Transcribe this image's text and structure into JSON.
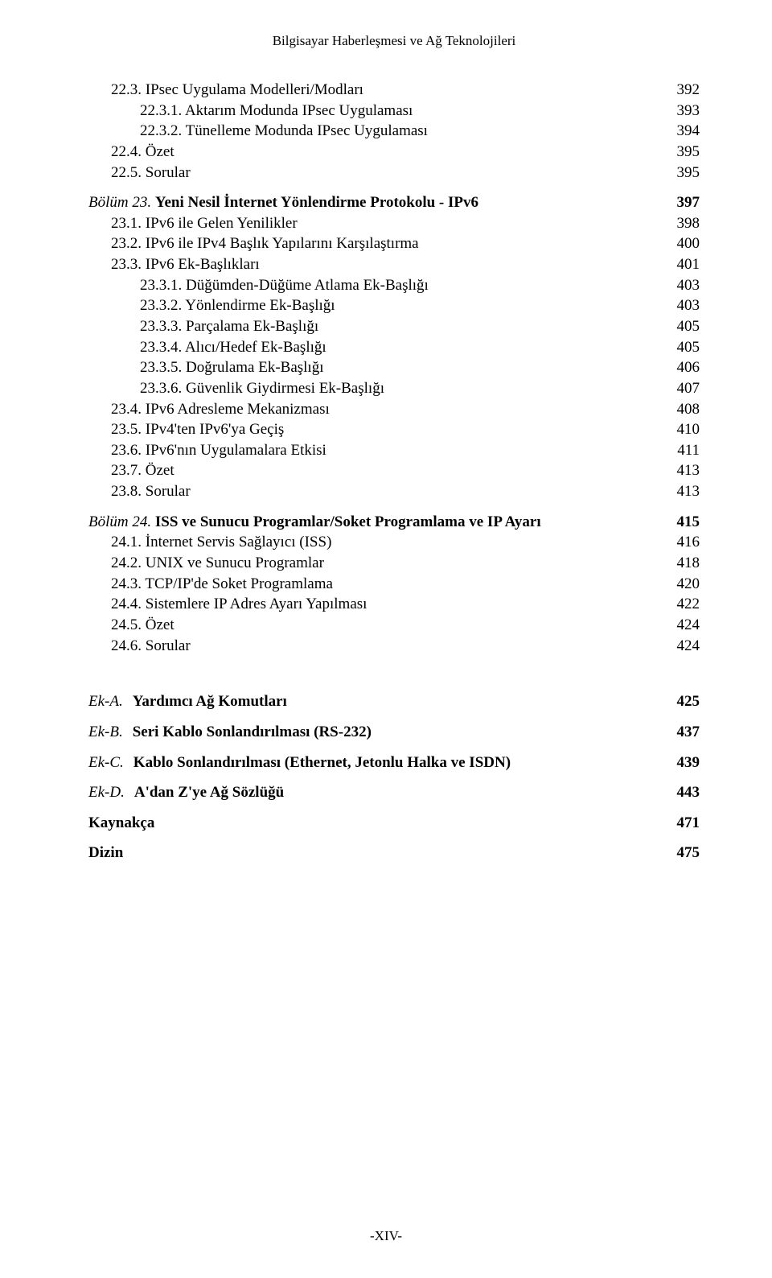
{
  "header": "Bilgisayar Haberleşmesi ve Ağ Teknolojileri",
  "toc": [
    {
      "label": "22.3. IPsec Uygulama Modelleri/Modları",
      "page": "392",
      "indent": 1,
      "style": ""
    },
    {
      "label": "22.3.1. Aktarım Modunda IPsec Uygulaması",
      "page": "393",
      "indent": 2,
      "style": ""
    },
    {
      "label": "22.3.2. Tünelleme Modunda IPsec Uygulaması",
      "page": "394",
      "indent": 2,
      "style": ""
    },
    {
      "label": "22.4. Özet",
      "page": "395",
      "indent": 1,
      "style": ""
    },
    {
      "label": "22.5. Sorular",
      "page": "395",
      "indent": 1,
      "style": ""
    },
    {
      "label": "<span class='section-title'>Bölüm 23.</span> <span class='bold'>Yeni Nesil İnternet Yönlendirme Protokolu - IPv6</span>",
      "page": "<span class='bold'>397</span>",
      "indent": 0,
      "style": "gap"
    },
    {
      "label": "23.1. IPv6 ile Gelen Yenilikler",
      "page": "398",
      "indent": 1,
      "style": ""
    },
    {
      "label": "23.2. IPv6 ile IPv4 Başlık Yapılarını Karşılaştırma",
      "page": "400",
      "indent": 1,
      "style": ""
    },
    {
      "label": "23.3. IPv6 Ek-Başlıkları",
      "page": "401",
      "indent": 1,
      "style": ""
    },
    {
      "label": "23.3.1. Düğümden-Düğüme Atlama Ek-Başlığı",
      "page": "403",
      "indent": 2,
      "style": ""
    },
    {
      "label": "23.3.2. Yönlendirme Ek-Başlığı",
      "page": "403",
      "indent": 2,
      "style": ""
    },
    {
      "label": "23.3.3. Parçalama Ek-Başlığı",
      "page": "405",
      "indent": 2,
      "style": ""
    },
    {
      "label": "23.3.4. Alıcı/Hedef Ek-Başlığı",
      "page": "405",
      "indent": 2,
      "style": ""
    },
    {
      "label": "23.3.5. Doğrulama Ek-Başlığı",
      "page": "406",
      "indent": 2,
      "style": ""
    },
    {
      "label": "23.3.6. Güvenlik Giydirmesi Ek-Başlığı",
      "page": "407",
      "indent": 2,
      "style": ""
    },
    {
      "label": "23.4. IPv6 Adresleme Mekanizması",
      "page": "408",
      "indent": 1,
      "style": ""
    },
    {
      "label": "23.5. IPv4'ten IPv6'ya Geçiş",
      "page": "410",
      "indent": 1,
      "style": ""
    },
    {
      "label": "23.6. IPv6'nın Uygulamalara Etkisi",
      "page": "411",
      "indent": 1,
      "style": ""
    },
    {
      "label": "23.7. Özet",
      "page": "413",
      "indent": 1,
      "style": ""
    },
    {
      "label": "23.8. Sorular",
      "page": "413",
      "indent": 1,
      "style": ""
    },
    {
      "label": "<span class='section-title'>Bölüm 24.</span> <span class='bold'>ISS ve Sunucu Programlar/Soket Programlama ve IP Ayarı</span>",
      "page": "<span class='bold'>415</span>",
      "indent": 0,
      "style": "gap"
    },
    {
      "label": "24.1. İnternet Servis Sağlayıcı (ISS)",
      "page": "416",
      "indent": 1,
      "style": ""
    },
    {
      "label": "24.2. UNIX ve Sunucu Programlar",
      "page": "418",
      "indent": 1,
      "style": ""
    },
    {
      "label": "24.3. TCP/IP'de Soket Programlama",
      "page": "420",
      "indent": 1,
      "style": ""
    },
    {
      "label": "24.4. Sistemlere IP Adres Ayarı Yapılması",
      "page": "422",
      "indent": 1,
      "style": ""
    },
    {
      "label": "24.5. Özet",
      "page": "424",
      "indent": 1,
      "style": ""
    },
    {
      "label": "24.6. Sorular",
      "page": "424",
      "indent": 1,
      "style": ""
    }
  ],
  "appendix": [
    {
      "code": "Ek-A.",
      "title": "Yardımcı Ağ Komutları",
      "page": "425",
      "bold": true
    },
    {
      "code": "Ek-B.",
      "title": "Seri Kablo Sonlandırılması (RS-232)",
      "page": "437",
      "bold": true
    },
    {
      "code": "Ek-C.",
      "title": "Kablo Sonlandırılması (Ethernet, Jetonlu Halka ve ISDN)",
      "page": "439",
      "bold": true
    },
    {
      "code": "Ek-D.",
      "title": "A'dan Z'ye Ağ Sözlüğü",
      "page": "443",
      "bold": true
    },
    {
      "code": "",
      "title": "Kaynakça",
      "page": "471",
      "bold": true
    },
    {
      "code": "",
      "title": "Dizin",
      "page": "475",
      "bold": true
    }
  ],
  "footer": "-XIV-"
}
